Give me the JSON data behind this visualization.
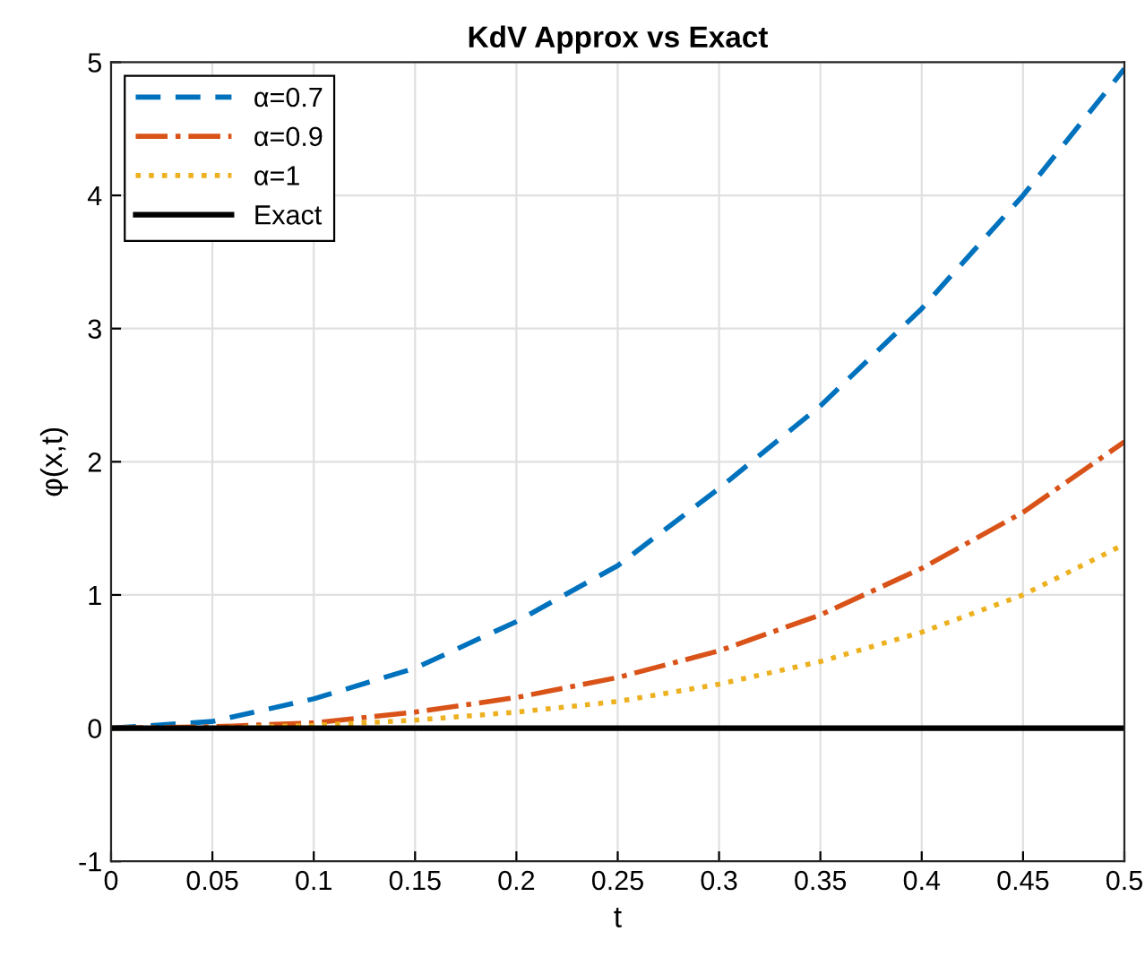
{
  "chart_data": {
    "type": "line",
    "title": "KdV Approx vs Exact",
    "xlabel": "t",
    "ylabel": "φ(x,t)",
    "x": [
      0,
      0.05,
      0.1,
      0.15,
      0.2,
      0.25,
      0.3,
      0.35,
      0.4,
      0.45,
      0.5
    ],
    "series": [
      {
        "name": "α=0.7",
        "color": "#0072bd",
        "line_style": "dashed",
        "values": [
          0,
          0.05,
          0.22,
          0.45,
          0.8,
          1.22,
          1.8,
          2.42,
          3.15,
          4.0,
          4.95
        ]
      },
      {
        "name": "α=0.9",
        "color": "#d95319",
        "line_style": "dashdot",
        "values": [
          0,
          0.01,
          0.04,
          0.12,
          0.23,
          0.38,
          0.58,
          0.85,
          1.2,
          1.62,
          2.15
        ]
      },
      {
        "name": "α=1",
        "color": "#edb120",
        "line_style": "dotted",
        "values": [
          0,
          0.0,
          0.02,
          0.06,
          0.12,
          0.2,
          0.33,
          0.5,
          0.72,
          1.0,
          1.38
        ]
      },
      {
        "name": "Exact",
        "color": "#000000",
        "line_style": "solid",
        "values": [
          0,
          0,
          0,
          0,
          0,
          0,
          0,
          0,
          0,
          0,
          0
        ]
      }
    ],
    "xlim": [
      0,
      0.5
    ],
    "xticks": [
      0,
      0.05,
      0.1,
      0.15,
      0.2,
      0.25,
      0.3,
      0.35,
      0.4,
      0.45,
      0.5
    ],
    "ylim": [
      -1,
      5
    ],
    "yticks": [
      -1,
      0,
      1,
      2,
      3,
      4,
      5
    ],
    "grid": true,
    "legend": "top left"
  }
}
